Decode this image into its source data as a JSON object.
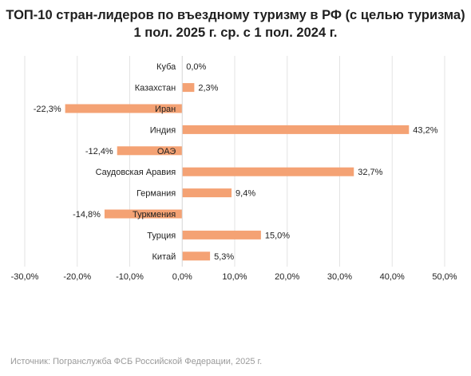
{
  "chart_data": {
    "type": "bar",
    "orientation": "horizontal",
    "title_lines": [
      "ТОП-10 стран-лидеров по въездному туризму в РФ (с целью туризма)",
      "1 пол. 2025 г. ср. с 1 пол. 2024 г."
    ],
    "categories": [
      "Куба",
      "Казахстан",
      "Иран",
      "Индия",
      "ОАЭ",
      "Саудовская Аравия",
      "Германия",
      "Туркмения",
      "Турция",
      "Китай"
    ],
    "values": [
      0.0,
      2.3,
      -22.3,
      43.2,
      -12.4,
      32.7,
      9.4,
      -14.8,
      15.0,
      5.3
    ],
    "value_labels": [
      "0,0%",
      "2,3%",
      "-22,3%",
      "43,2%",
      "-12,4%",
      "32,7%",
      "9,4%",
      "-14,8%",
      "15,0%",
      "5,3%"
    ],
    "xlim": [
      -30,
      50
    ],
    "xticks": [
      -30,
      -20,
      -10,
      0,
      10,
      20,
      30,
      40,
      50
    ],
    "xtick_labels": [
      "-30,0%",
      "-20,0%",
      "-10,0%",
      "0,0%",
      "10,0%",
      "20,0%",
      "30,0%",
      "40,0%",
      "50,0%"
    ],
    "xlabel": "",
    "ylabel": "",
    "grid": true,
    "legend": "none",
    "bar_color": "#f4a274"
  },
  "source": "Источник: Погранслужба ФСБ Российской Федерации, 2025 г."
}
